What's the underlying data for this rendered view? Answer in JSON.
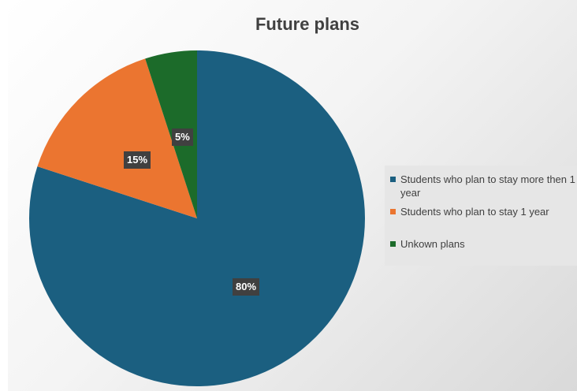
{
  "chart_data": {
    "type": "pie",
    "title": "Future plans",
    "start_angle_deg": 0,
    "direction": "clockwise",
    "slices": [
      {
        "label": "Students who plan to stay more then 1 year",
        "value": 80,
        "display": "80%",
        "color": "#1b5f80"
      },
      {
        "label": "Students who plan to stay 1 year",
        "value": 15,
        "display": "15%",
        "color": "#eb7530"
      },
      {
        "label": "Unkown plans",
        "value": 5,
        "display": "5%",
        "color": "#1c6b2a"
      }
    ],
    "legend_position": "right"
  },
  "legend": {
    "items": [
      {
        "line1": "Students who plan to stay more then 1",
        "line2": "year"
      },
      {
        "line1": "Students who plan to stay 1 year"
      },
      {
        "line1": "Unkown plans"
      }
    ]
  }
}
